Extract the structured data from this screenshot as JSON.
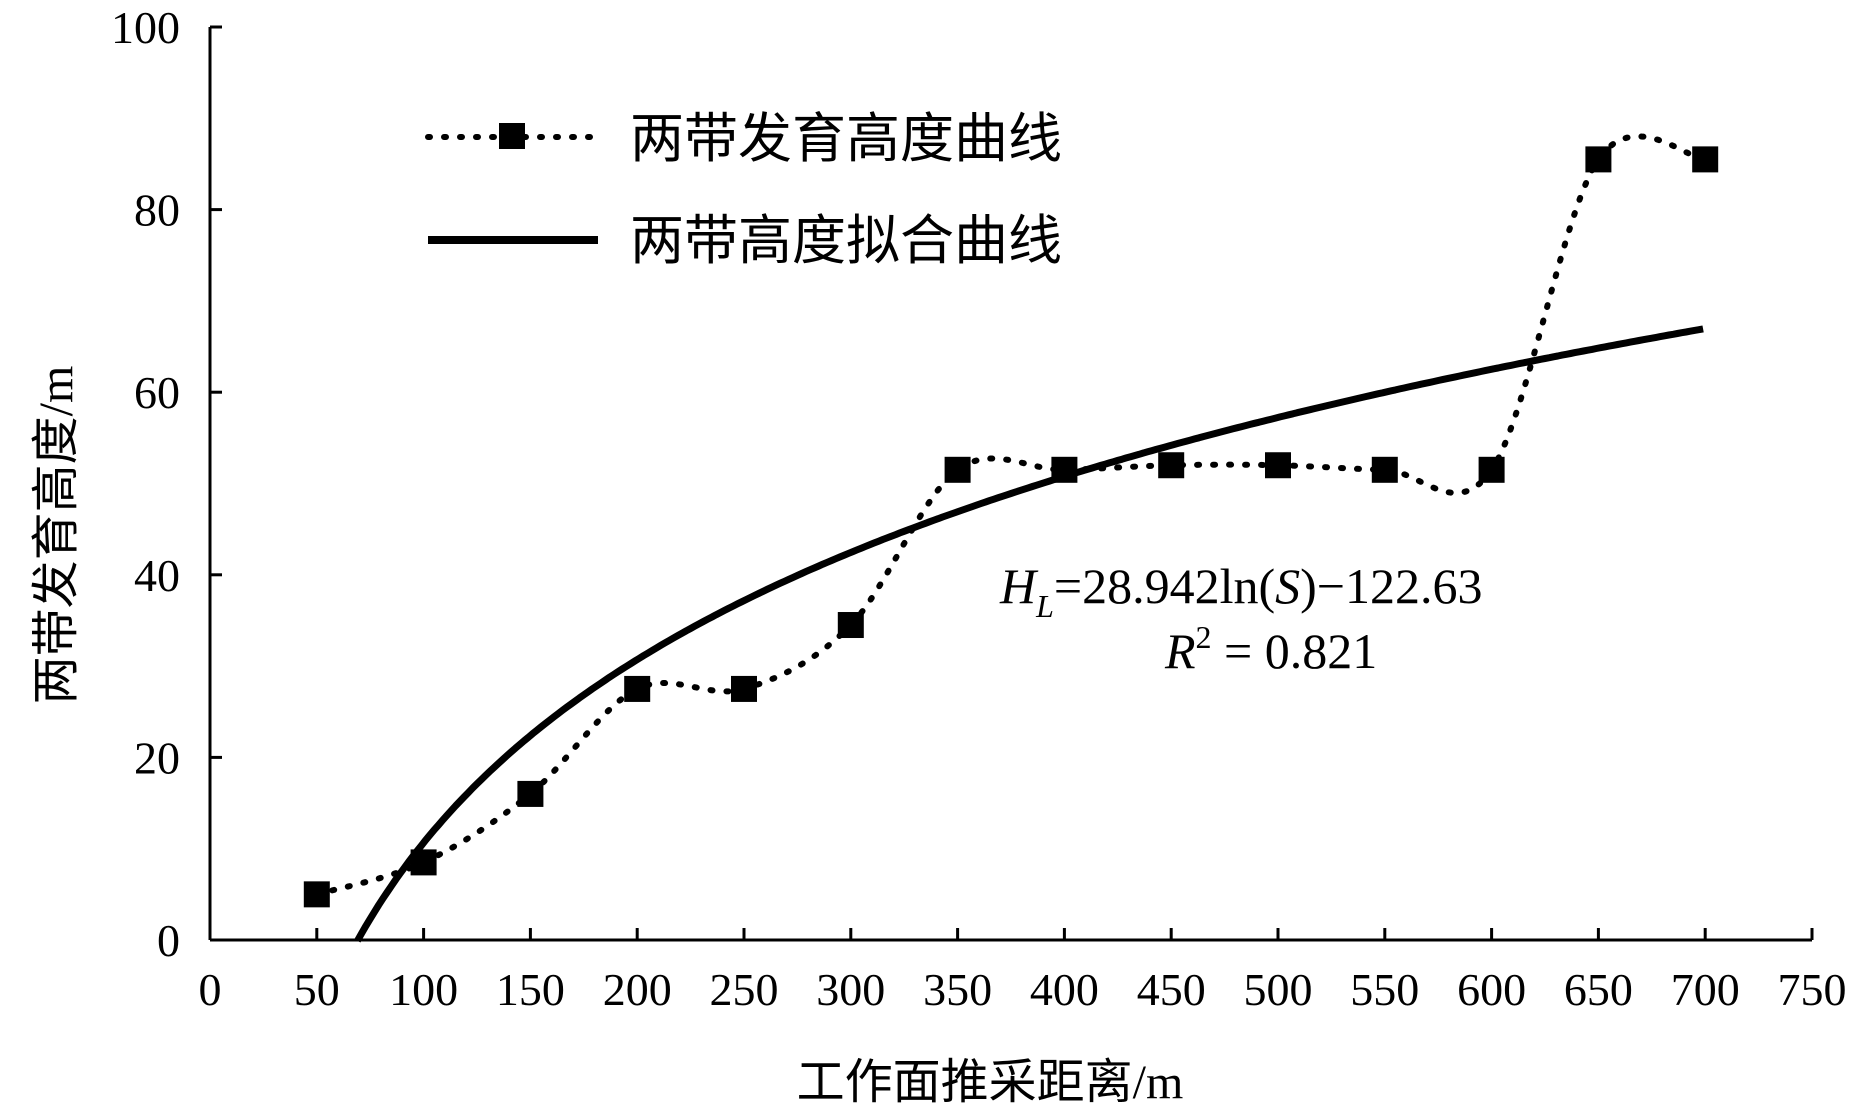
{
  "chart_data": {
    "type": "line",
    "title": "",
    "xlabel": "工作面推采距离/m",
    "ylabel": "两带发育高度/m",
    "xlim": [
      0,
      750
    ],
    "ylim": [
      0,
      100
    ],
    "xticks": [
      "0",
      "50",
      "100",
      "150",
      "200",
      "250",
      "300",
      "350",
      "400",
      "450",
      "500",
      "550",
      "600",
      "650",
      "700",
      "750"
    ],
    "yticks": [
      "0",
      "20",
      "40",
      "60",
      "80",
      "100"
    ],
    "grid": false,
    "legend_position": "top-left",
    "series": [
      {
        "name": "两带发育高度曲线",
        "style": "dotted-with-square-markers",
        "x": [
          50,
          100,
          150,
          200,
          250,
          300,
          350,
          400,
          450,
          500,
          550,
          600,
          650,
          700
        ],
        "y": [
          5,
          8.5,
          16,
          27.5,
          27.5,
          34.5,
          51.5,
          51.5,
          52,
          52,
          51.5,
          51.5,
          85.5,
          85.5
        ]
      },
      {
        "name": "两带高度拟合曲线",
        "style": "solid",
        "formula": "HL = 28.942 ln(S) - 122.63",
        "x_start": 69,
        "x_end": 700,
        "coefficients": {
          "a": 28.942,
          "b": -122.63
        }
      }
    ],
    "annotation": {
      "equation_var": "H",
      "equation_sub": "L",
      "equation_rest_1": "=28.942ln(",
      "equation_arg": "S",
      "equation_rest_2": ")−122.63",
      "r2_var": "R",
      "r2_sup": "2",
      "r2_rest": " = 0.821"
    },
    "colors": {
      "line": "#000000",
      "marker": "#000000",
      "axis": "#000000"
    }
  }
}
